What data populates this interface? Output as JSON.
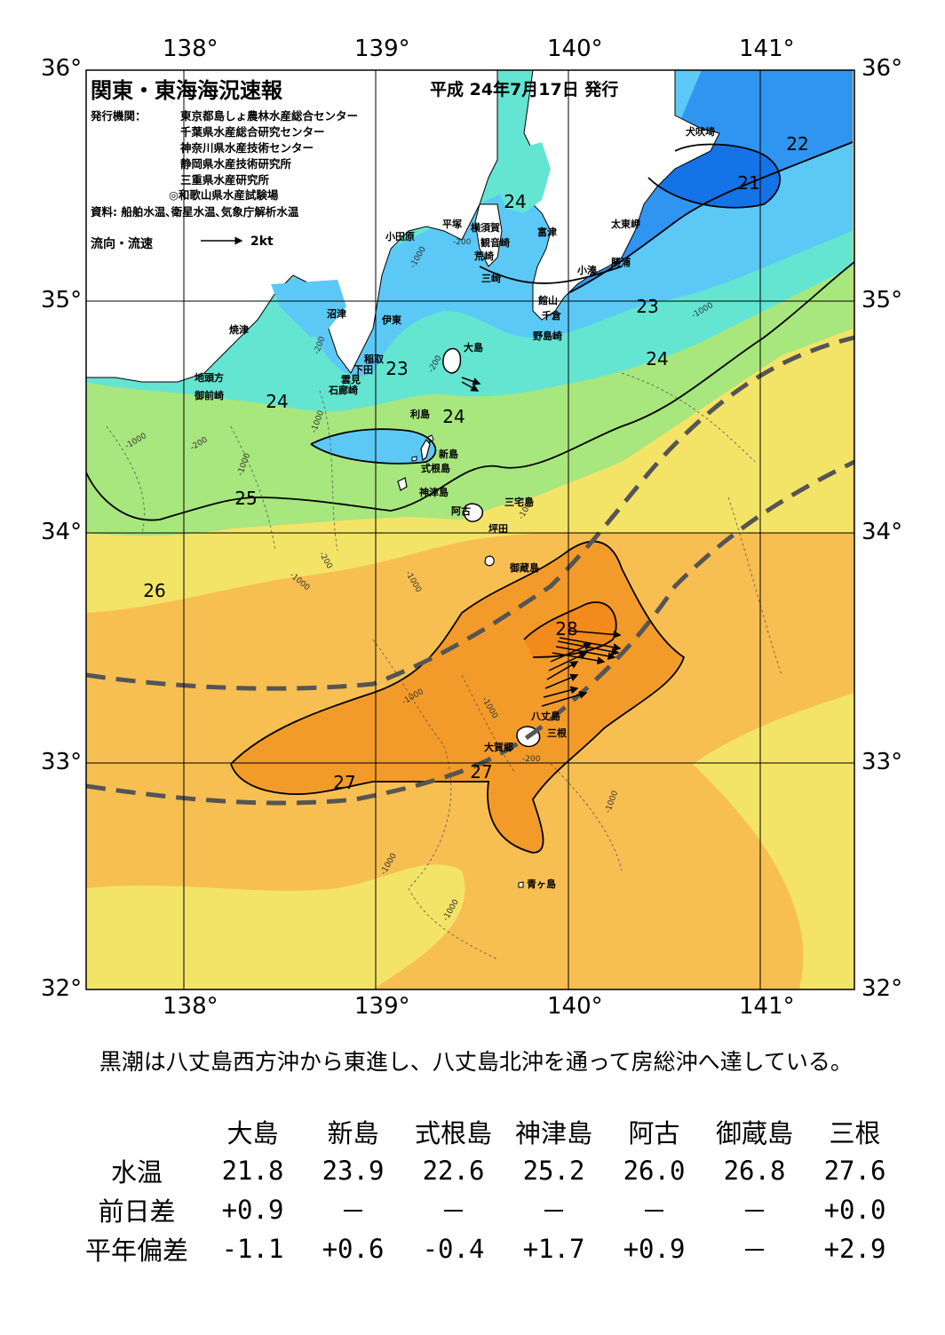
{
  "header": {
    "title": "関東・東海海況速報",
    "issue_date": "平成 24年7月17日 発行",
    "issuer_label": "発行機関：",
    "issuers": [
      "東京都島しょ農林水産総合センター",
      "千葉県水産総合研究センター",
      "神奈川県水産技術センター",
      "静岡県水産技術研究所",
      "三重県水産研究所",
      "◎和歌山県水産試験場"
    ],
    "sources": "資料: 船舶水温､衛星水温､気象庁解析水温",
    "flow_legend": "流向・流速",
    "flow_scale": "2kt"
  },
  "axes": {
    "lon_labels": [
      "138°",
      "139°",
      "140°",
      "141°"
    ],
    "lat_labels": [
      "36°",
      "35°",
      "34°",
      "33°",
      "32°"
    ]
  },
  "colors": {
    "t21": "#1473e6",
    "t22": "#2f95f0",
    "t23": "#5cc8f5",
    "t24": "#63e5d2",
    "t25": "#a8e67e",
    "t26": "#f3e468",
    "t27": "#f7bf52",
    "t28": "#f39b2a",
    "land": "#ffffff",
    "kuroshio_axis": "#555555"
  },
  "isotherm_labels": [
    "22",
    "21",
    "24",
    "23",
    "24",
    "23",
    "24",
    "24",
    "25",
    "26",
    "28",
    "27",
    "27"
  ],
  "depth_labels": [
    "-200",
    "-1000",
    "-200",
    "-1000",
    "-1000",
    "-200",
    "-200",
    "-1000",
    "-1000",
    "-1000",
    "-200",
    "-1000",
    "-1000",
    "-1000",
    "-200",
    "-1000",
    "-1000",
    "-1000",
    "-1000"
  ],
  "places": [
    "犬吠埼",
    "太東岬",
    "勝浦",
    "小湊",
    "富津",
    "横須賀",
    "観音崎",
    "平塚",
    "小田原",
    "荒崎",
    "三崎",
    "館山",
    "千倉",
    "野島崎",
    "沼津",
    "伊東",
    "焼津",
    "稲取",
    "下田",
    "雲見",
    "石廊崎",
    "地頭方",
    "御前崎",
    "大島",
    "利島",
    "新島",
    "式根島",
    "神津島",
    "三宅島",
    "阿古",
    "坪田",
    "御蔵島",
    "八丈島",
    "三根",
    "大賀郷",
    "青ヶ島"
  ],
  "summary": "黒潮は八丈島西方沖から東進し、八丈島北沖を通って房総沖へ達している。",
  "table": {
    "stations": [
      "大島",
      "新島",
      "式根島",
      "神津島",
      "阿古",
      "御蔵島",
      "三根"
    ],
    "rows": [
      {
        "label": "水温",
        "values": [
          "21.8",
          "23.9",
          "22.6",
          "25.2",
          "26.0",
          "26.8",
          "27.6"
        ]
      },
      {
        "label": "前日差",
        "values": [
          "+0.9",
          "－",
          "－",
          "－",
          "－",
          "－",
          "+0.0"
        ]
      },
      {
        "label": "平年偏差",
        "values": [
          "-1.1",
          "+0.6",
          "-0.4",
          "+1.7",
          "+0.9",
          "－",
          "+2.9"
        ]
      }
    ]
  }
}
